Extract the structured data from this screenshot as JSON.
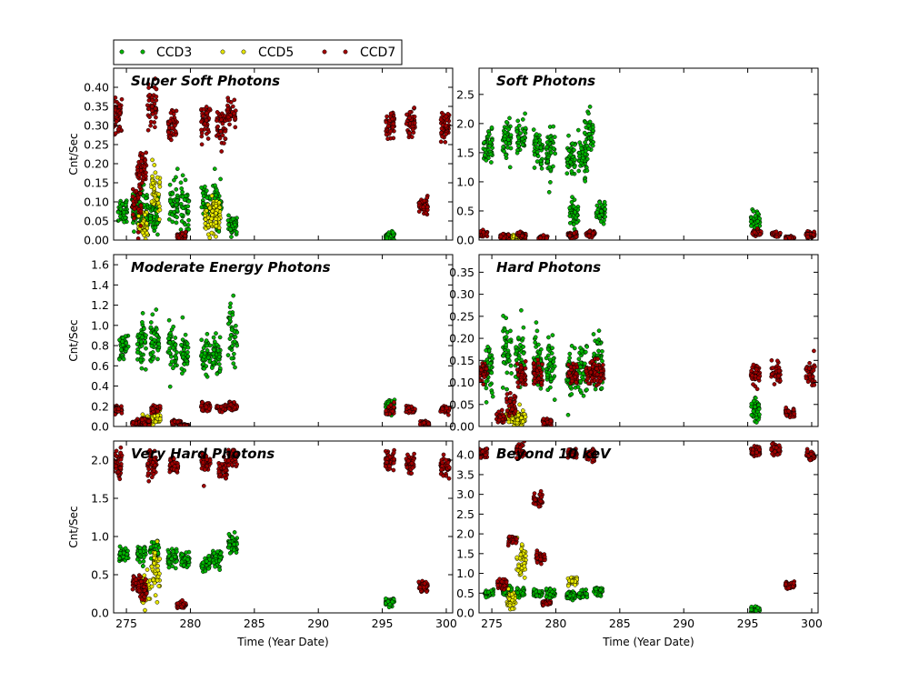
{
  "legend": {
    "placement": "top-left, above plots",
    "entries": [
      {
        "name": "CCD3",
        "color": "#00b400"
      },
      {
        "name": "CCD5",
        "color": "#e6e600"
      },
      {
        "name": "CCD7",
        "color": "#a00000"
      }
    ]
  },
  "chart_data": [
    {
      "id": "super_soft",
      "type": "scatter",
      "title": "Super Soft Photons",
      "ylabel": "Cnt/Sec",
      "xlabel": "",
      "xlim": [
        274,
        300.5
      ],
      "ylim": [
        0,
        0.45
      ],
      "xticks": [
        "275",
        "280",
        "285",
        "290",
        "295",
        "300"
      ],
      "xtick_values": [
        275,
        280,
        285,
        290,
        295,
        300
      ],
      "yticks": [
        "0.00",
        "0.05",
        "0.10",
        "0.15",
        "0.20",
        "0.25",
        "0.30",
        "0.35",
        "0.40"
      ],
      "ytick_values": [
        0,
        0.05,
        0.1,
        0.15,
        0.2,
        0.25,
        0.3,
        0.35,
        0.4
      ],
      "show_xtick_labels": false,
      "series": [
        {
          "name": "CCD3",
          "clusters": [
            [
              274.7,
              0.08,
              0.03
            ],
            [
              275.7,
              0.08,
              0.04
            ],
            [
              276.4,
              0.08,
              0.05
            ],
            [
              277.2,
              0.07,
              0.04
            ],
            [
              278.7,
              0.1,
              0.05
            ],
            [
              279.6,
              0.09,
              0.05
            ],
            [
              281.2,
              0.09,
              0.04
            ],
            [
              282.1,
              0.09,
              0.05
            ],
            [
              283.3,
              0.04,
              0.02
            ],
            [
              295.6,
              0.01,
              0.01
            ]
          ]
        },
        {
          "name": "CCD5",
          "clusters": [
            [
              276.3,
              0.04,
              0.03
            ],
            [
              277.3,
              0.12,
              0.05
            ],
            [
              281.5,
              0.06,
              0.03
            ],
            [
              282.0,
              0.07,
              0.04
            ]
          ]
        },
        {
          "name": "CCD7",
          "clusters": [
            [
              274.3,
              0.33,
              0.04
            ],
            [
              275.8,
              0.09,
              0.05
            ],
            [
              276.2,
              0.18,
              0.04
            ],
            [
              277.0,
              0.35,
              0.05
            ],
            [
              278.6,
              0.3,
              0.04
            ],
            [
              279.3,
              0.01,
              0.01
            ],
            [
              281.2,
              0.31,
              0.04
            ],
            [
              282.4,
              0.3,
              0.04
            ],
            [
              283.2,
              0.33,
              0.03
            ],
            [
              295.6,
              0.3,
              0.03
            ],
            [
              297.2,
              0.31,
              0.03
            ],
            [
              298.2,
              0.09,
              0.02
            ],
            [
              299.9,
              0.3,
              0.03
            ]
          ]
        }
      ]
    },
    {
      "id": "soft",
      "type": "scatter",
      "title": "Soft Photons",
      "ylabel": "",
      "xlabel": "",
      "xlim": [
        274,
        300.5
      ],
      "ylim": [
        0,
        2.95
      ],
      "xticks": [
        "275",
        "280",
        "285",
        "290",
        "295",
        "300"
      ],
      "xtick_values": [
        275,
        280,
        285,
        290,
        295,
        300
      ],
      "yticks": [
        "0.0",
        "0.5",
        "1.0",
        "1.5",
        "2.0",
        "2.5"
      ],
      "ytick_values": [
        0,
        0.5,
        1.0,
        1.5,
        2.0,
        2.5
      ],
      "show_xtick_labels": false,
      "series": [
        {
          "name": "CCD3",
          "clusters": [
            [
              274.7,
              1.6,
              0.25
            ],
            [
              276.2,
              1.7,
              0.25
            ],
            [
              277.3,
              1.8,
              0.25
            ],
            [
              278.6,
              1.6,
              0.3
            ],
            [
              279.6,
              1.5,
              0.3
            ],
            [
              281.2,
              1.4,
              0.25
            ],
            [
              281.4,
              0.45,
              0.2
            ],
            [
              282.1,
              1.4,
              0.25
            ],
            [
              282.6,
              1.8,
              0.3
            ],
            [
              283.5,
              0.5,
              0.15
            ],
            [
              295.6,
              0.35,
              0.15
            ]
          ]
        },
        {
          "name": "CCD5",
          "clusters": [
            [
              276.4,
              0.05,
              0.04
            ],
            [
              277.3,
              0.06,
              0.04
            ]
          ]
        },
        {
          "name": "CCD7",
          "clusters": [
            [
              274.3,
              0.1,
              0.05
            ],
            [
              276.0,
              0.06,
              0.04
            ],
            [
              277.3,
              0.08,
              0.05
            ],
            [
              279.0,
              0.04,
              0.03
            ],
            [
              281.3,
              0.08,
              0.04
            ],
            [
              282.7,
              0.1,
              0.04
            ],
            [
              295.7,
              0.12,
              0.04
            ],
            [
              297.2,
              0.1,
              0.04
            ],
            [
              298.3,
              0.04,
              0.02
            ],
            [
              299.9,
              0.1,
              0.04
            ]
          ]
        }
      ]
    },
    {
      "id": "moderate",
      "type": "scatter",
      "title": "Moderate Energy Photons",
      "ylabel": "Cnt/Sec",
      "xlabel": "",
      "xlim": [
        274,
        300.5
      ],
      "ylim": [
        0,
        1.7
      ],
      "xticks": [
        "275",
        "280",
        "285",
        "290",
        "295",
        "300"
      ],
      "xtick_values": [
        275,
        280,
        285,
        290,
        295,
        300
      ],
      "yticks": [
        "0.0",
        "0.2",
        "0.4",
        "0.6",
        "0.8",
        "1.0",
        "1.2",
        "1.4",
        "1.6"
      ],
      "ytick_values": [
        0,
        0.2,
        0.4,
        0.6,
        0.8,
        1.0,
        1.2,
        1.4,
        1.6
      ],
      "show_xtick_labels": false,
      "series": [
        {
          "name": "CCD3",
          "clusters": [
            [
              274.8,
              0.8,
              0.12
            ],
            [
              276.2,
              0.85,
              0.18
            ],
            [
              277.2,
              0.85,
              0.18
            ],
            [
              278.6,
              0.8,
              0.2
            ],
            [
              279.6,
              0.75,
              0.2
            ],
            [
              281.2,
              0.7,
              0.15
            ],
            [
              282.0,
              0.7,
              0.2
            ],
            [
              283.3,
              0.9,
              0.25
            ],
            [
              295.6,
              0.2,
              0.05
            ]
          ]
        },
        {
          "name": "CCD5",
          "clusters": [
            [
              276.5,
              0.06,
              0.04
            ],
            [
              277.3,
              0.08,
              0.05
            ]
          ]
        },
        {
          "name": "CCD7",
          "clusters": [
            [
              274.3,
              0.17,
              0.03
            ],
            [
              275.8,
              0.03,
              0.02
            ],
            [
              276.5,
              0.05,
              0.03
            ],
            [
              277.3,
              0.17,
              0.03
            ],
            [
              278.9,
              0.04,
              0.02
            ],
            [
              279.5,
              0.01,
              0.01
            ],
            [
              281.2,
              0.2,
              0.04
            ],
            [
              282.4,
              0.18,
              0.03
            ],
            [
              283.3,
              0.2,
              0.03
            ],
            [
              295.6,
              0.16,
              0.04
            ],
            [
              297.2,
              0.17,
              0.03
            ],
            [
              298.3,
              0.03,
              0.02
            ],
            [
              299.9,
              0.17,
              0.03
            ]
          ]
        }
      ]
    },
    {
      "id": "hard",
      "type": "scatter",
      "title": "Hard Photons",
      "ylabel": "",
      "xlabel": "",
      "xlim": [
        274,
        300.5
      ],
      "ylim": [
        0,
        0.39
      ],
      "xticks": [
        "275",
        "280",
        "285",
        "290",
        "295",
        "300"
      ],
      "xtick_values": [
        275,
        280,
        285,
        290,
        295,
        300
      ],
      "yticks": [
        "0.00",
        "0.05",
        "0.10",
        "0.15",
        "0.20",
        "0.25",
        "0.30",
        "0.35"
      ],
      "ytick_values": [
        0,
        0.05,
        0.1,
        0.15,
        0.2,
        0.25,
        0.3,
        0.35
      ],
      "show_xtick_labels": false,
      "series": [
        {
          "name": "CCD3",
          "clusters": [
            [
              274.8,
              0.13,
              0.05
            ],
            [
              276.2,
              0.17,
              0.06
            ],
            [
              277.2,
              0.15,
              0.05
            ],
            [
              278.6,
              0.15,
              0.06
            ],
            [
              279.6,
              0.13,
              0.05
            ],
            [
              281.2,
              0.12,
              0.05
            ],
            [
              282.1,
              0.13,
              0.05
            ],
            [
              283.3,
              0.15,
              0.06
            ],
            [
              295.6,
              0.04,
              0.02
            ]
          ]
        },
        {
          "name": "CCD5",
          "clusters": [
            [
              276.5,
              0.02,
              0.015
            ],
            [
              277.3,
              0.02,
              0.015
            ]
          ]
        },
        {
          "name": "CCD7",
          "clusters": [
            [
              274.3,
              0.12,
              0.02
            ],
            [
              275.7,
              0.02,
              0.01
            ],
            [
              276.5,
              0.05,
              0.02
            ],
            [
              277.3,
              0.12,
              0.02
            ],
            [
              278.6,
              0.12,
              0.02
            ],
            [
              279.3,
              0.01,
              0.005
            ],
            [
              281.3,
              0.12,
              0.02
            ],
            [
              282.7,
              0.12,
              0.02
            ],
            [
              283.4,
              0.12,
              0.02
            ],
            [
              295.6,
              0.12,
              0.02
            ],
            [
              297.2,
              0.12,
              0.02
            ],
            [
              298.3,
              0.03,
              0.01
            ],
            [
              299.9,
              0.12,
              0.02
            ]
          ]
        }
      ]
    },
    {
      "id": "very_hard",
      "type": "scatter",
      "title": "Very Hard Photons",
      "ylabel": "Cnt/Sec",
      "xlabel": "Time (Year Date)",
      "xlim": [
        274,
        300.5
      ],
      "ylim": [
        0,
        2.25
      ],
      "xticks": [
        "275",
        "280",
        "285",
        "290",
        "295",
        "300"
      ],
      "xtick_values": [
        275,
        280,
        285,
        290,
        295,
        300
      ],
      "yticks": [
        "0.0",
        "0.5",
        "1.0",
        "1.5",
        "2.0"
      ],
      "ytick_values": [
        0,
        0.5,
        1.0,
        1.5,
        2.0
      ],
      "show_xtick_labels": true,
      "series": [
        {
          "name": "CCD3",
          "clusters": [
            [
              274.8,
              0.75,
              0.08
            ],
            [
              276.2,
              0.78,
              0.1
            ],
            [
              277.2,
              0.8,
              0.12
            ],
            [
              278.6,
              0.72,
              0.1
            ],
            [
              279.6,
              0.68,
              0.08
            ],
            [
              281.2,
              0.65,
              0.08
            ],
            [
              282.1,
              0.7,
              0.1
            ],
            [
              283.3,
              0.9,
              0.1
            ],
            [
              295.6,
              0.15,
              0.05
            ]
          ]
        },
        {
          "name": "CCD5",
          "clusters": [
            [
              276.5,
              0.3,
              0.2
            ],
            [
              277.3,
              0.6,
              0.3
            ]
          ]
        },
        {
          "name": "CCD7",
          "clusters": [
            [
              274.3,
              1.95,
              0.15
            ],
            [
              275.8,
              0.4,
              0.08
            ],
            [
              276.3,
              0.3,
              0.08
            ],
            [
              277.0,
              1.95,
              0.15
            ],
            [
              278.7,
              1.95,
              0.1
            ],
            [
              279.3,
              0.1,
              0.04
            ],
            [
              281.2,
              1.95,
              0.1
            ],
            [
              282.5,
              1.9,
              0.1
            ],
            [
              283.3,
              2.05,
              0.1
            ],
            [
              295.6,
              2.0,
              0.1
            ],
            [
              297.2,
              1.95,
              0.1
            ],
            [
              298.2,
              0.35,
              0.06
            ],
            [
              299.9,
              1.9,
              0.1
            ]
          ]
        }
      ]
    },
    {
      "id": "beyond10",
      "type": "scatter",
      "title": "Beyond 10 keV",
      "ylabel": "",
      "xlabel": "Time (Year Date)",
      "xlim": [
        274,
        300.5
      ],
      "ylim": [
        0,
        4.35
      ],
      "xticks": [
        "275",
        "280",
        "285",
        "290",
        "295",
        "300"
      ],
      "xtick_values": [
        275,
        280,
        285,
        290,
        295,
        300
      ],
      "yticks": [
        "0.0",
        "0.5",
        "1.0",
        "1.5",
        "2.0",
        "2.5",
        "3.0",
        "3.5",
        "4.0"
      ],
      "ytick_values": [
        0,
        0.5,
        1.0,
        1.5,
        2.0,
        2.5,
        3.0,
        3.5,
        4.0
      ],
      "show_xtick_labels": true,
      "series": [
        {
          "name": "CCD3",
          "clusters": [
            [
              274.8,
              0.5,
              0.08
            ],
            [
              276.2,
              0.55,
              0.1
            ],
            [
              277.2,
              0.5,
              0.1
            ],
            [
              278.6,
              0.5,
              0.08
            ],
            [
              279.6,
              0.5,
              0.1
            ],
            [
              281.2,
              0.45,
              0.08
            ],
            [
              282.1,
              0.45,
              0.08
            ],
            [
              283.3,
              0.55,
              0.08
            ],
            [
              295.6,
              0.1,
              0.05
            ]
          ]
        },
        {
          "name": "CCD5",
          "clusters": [
            [
              276.5,
              0.3,
              0.2
            ],
            [
              277.3,
              1.3,
              0.4
            ],
            [
              281.3,
              0.8,
              0.1
            ]
          ]
        },
        {
          "name": "CCD7",
          "clusters": [
            [
              274.3,
              4.05,
              0.12
            ],
            [
              275.8,
              0.75,
              0.1
            ],
            [
              276.6,
              1.85,
              0.1
            ],
            [
              277.2,
              4.1,
              0.15
            ],
            [
              278.6,
              2.85,
              0.1
            ],
            [
              278.8,
              1.4,
              0.1
            ],
            [
              279.3,
              0.25,
              0.05
            ],
            [
              281.3,
              4.05,
              0.1
            ],
            [
              282.7,
              4.0,
              0.1
            ],
            [
              295.6,
              4.1,
              0.12
            ],
            [
              297.2,
              4.15,
              0.12
            ],
            [
              298.3,
              0.7,
              0.08
            ],
            [
              299.9,
              4.0,
              0.1
            ]
          ]
        }
      ]
    }
  ]
}
